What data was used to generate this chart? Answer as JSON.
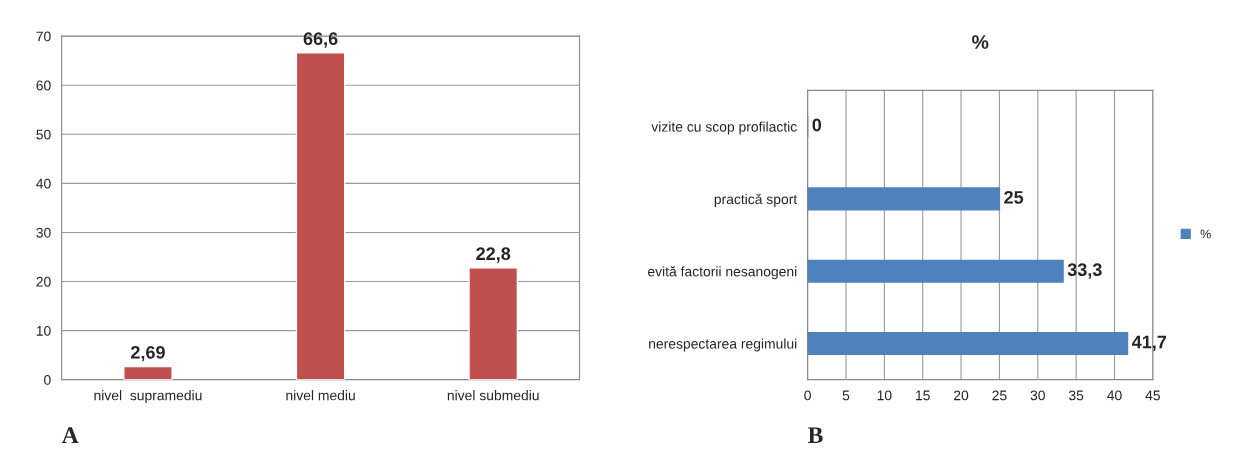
{
  "chart_data": [
    {
      "type": "bar",
      "categories": [
        "nivel  supramediu",
        "nivel mediu",
        "nivel submediu"
      ],
      "series": [
        {
          "color": "#c0504d",
          "values": [
            2.69,
            66.6,
            22.8
          ],
          "value_labels": [
            "2,69",
            "66,6",
            "22,8"
          ]
        }
      ],
      "ylim": [
        0,
        70
      ],
      "yticks": [
        0,
        10,
        20,
        30,
        40,
        50,
        60,
        70
      ],
      "grid": "y",
      "annotations": [
        "A"
      ]
    },
    {
      "type": "bar",
      "orientation": "horizontal",
      "title": "%",
      "categories": [
        "vizite cu scop profilactic",
        "practică sport",
        "evită factorii nesanogeni",
        "nerespectarea regimului"
      ],
      "series": [
        {
          "name": "%",
          "color": "#4f81bd",
          "values": [
            0,
            25,
            33.3,
            41.7
          ],
          "value_labels": [
            "0",
            "25",
            "33,3",
            "41,7"
          ]
        }
      ],
      "xlim": [
        0,
        45
      ],
      "xticks": [
        0,
        5,
        10,
        15,
        20,
        25,
        30,
        35,
        40,
        45
      ],
      "grid": "x",
      "legend": "right",
      "annotations": [
        "B"
      ]
    }
  ]
}
